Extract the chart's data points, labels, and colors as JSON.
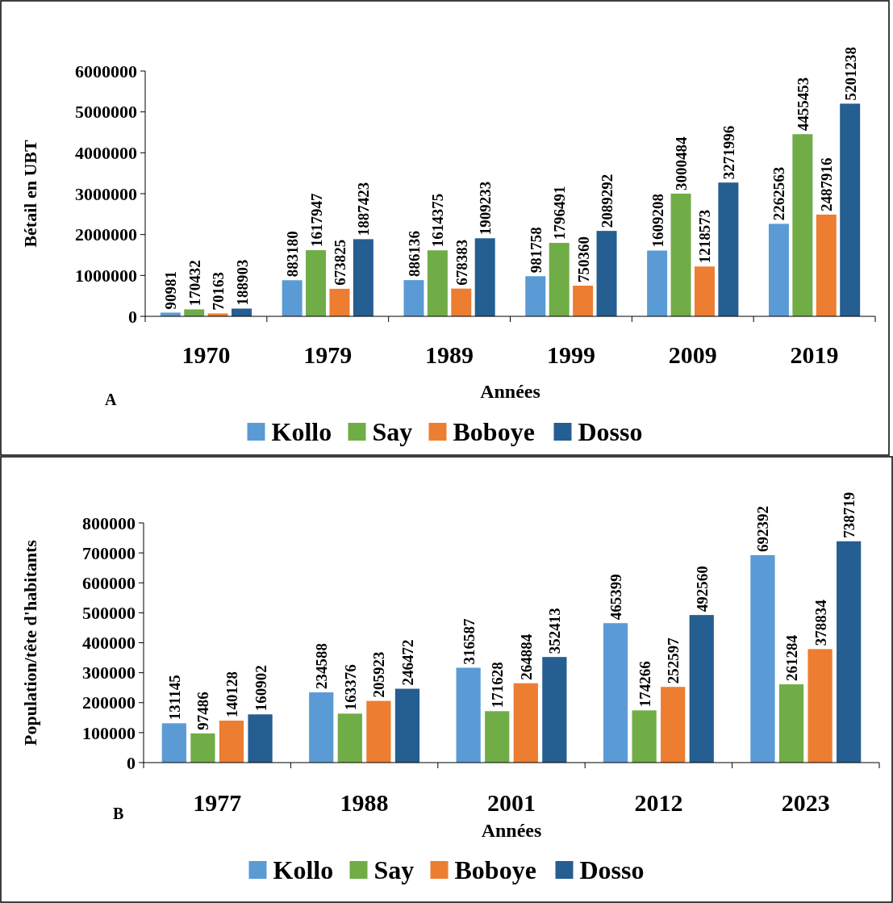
{
  "chart_data": [
    {
      "type": "bar",
      "ylabel": "Bétail en UBT",
      "xlabel": "Années",
      "annotations": [
        "A"
      ],
      "categories": [
        "1970",
        "1979",
        "1989",
        "1999",
        "2009",
        "2019"
      ],
      "series": [
        {
          "name": "Kollo",
          "color": "#5b9bd5",
          "values": [
            90981,
            883180,
            886136,
            981758,
            1609208,
            2262563
          ]
        },
        {
          "name": "Say",
          "color": "#70ad47",
          "values": [
            170432,
            1617947,
            1614375,
            1796491,
            3000484,
            4455453
          ]
        },
        {
          "name": "Boboye",
          "color": "#ed7d31",
          "values": [
            70163,
            673825,
            678383,
            750360,
            1218573,
            2487916
          ]
        },
        {
          "name": "Dosso",
          "color": "#255e91",
          "values": [
            188903,
            1887423,
            1909233,
            2089292,
            3271996,
            5201238
          ]
        }
      ],
      "ylim": [
        0,
        6000000
      ],
      "yticks": [
        0,
        1000000,
        2000000,
        3000000,
        4000000,
        5000000,
        6000000
      ],
      "data_labels": true,
      "legend": "bottom",
      "grid": false
    },
    {
      "type": "bar",
      "ylabel": "Population/tête d'habitants",
      "xlabel": "Années",
      "annotations": [
        "B"
      ],
      "categories": [
        "1977",
        "1988",
        "2001",
        "2012",
        "2023"
      ],
      "series": [
        {
          "name": "Kollo",
          "color": "#5b9bd5",
          "values": [
            131145,
            234588,
            316587,
            465399,
            692392
          ]
        },
        {
          "name": "Say",
          "color": "#70ad47",
          "values": [
            97486,
            163376,
            171628,
            174266,
            261284
          ]
        },
        {
          "name": "Boboye",
          "color": "#ed7d31",
          "values": [
            140128,
            205923,
            264884,
            252597,
            378834
          ]
        },
        {
          "name": "Dosso",
          "color": "#255e91",
          "values": [
            160902,
            246472,
            352413,
            492560,
            738719
          ]
        }
      ],
      "ylim": [
        0,
        800000
      ],
      "yticks": [
        0,
        100000,
        200000,
        300000,
        400000,
        500000,
        600000,
        700000,
        800000
      ],
      "data_labels": true,
      "legend": "bottom",
      "grid": false
    }
  ]
}
